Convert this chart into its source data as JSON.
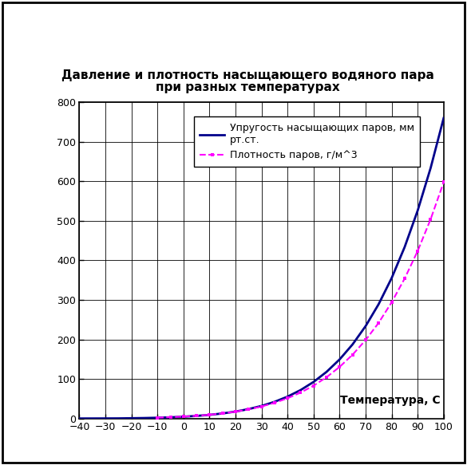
{
  "title_line1": "Давление и плотность насыщающего водяного пара",
  "title_line2": "при разных температурах",
  "xlabel": "Температура, С",
  "legend1": "Упругость насыщающих паров, мм\nрт.ст.",
  "legend2": "Плотность паров, г/м^3",
  "pressure_color": "#00008B",
  "density_color": "#FF00FF",
  "xlim": [
    -40,
    100
  ],
  "ylim": [
    0,
    800
  ],
  "xticks": [
    -40,
    -30,
    -20,
    -10,
    0,
    10,
    20,
    30,
    40,
    50,
    60,
    70,
    80,
    90,
    100
  ],
  "yticks": [
    0,
    100,
    200,
    300,
    400,
    500,
    600,
    700,
    800
  ],
  "pressure_data": {
    "temps": [
      -40,
      -35,
      -30,
      -25,
      -20,
      -15,
      -10,
      -5,
      0,
      5,
      10,
      15,
      20,
      25,
      30,
      35,
      40,
      45,
      50,
      55,
      60,
      65,
      70,
      75,
      80,
      85,
      90,
      95,
      100
    ],
    "values": [
      0.097,
      0.149,
      0.228,
      0.345,
      0.776,
      1.241,
      1.95,
      3.013,
      4.579,
      6.543,
      9.209,
      12.788,
      17.535,
      23.769,
      31.824,
      42.175,
      55.324,
      71.88,
      92.51,
      118.04,
      149.38,
      187.54,
      233.7,
      289.1,
      355.1,
      433.6,
      525.76,
      633.9,
      760.0
    ]
  },
  "density_data": {
    "temps": [
      -10,
      -5,
      0,
      5,
      10,
      15,
      20,
      25,
      30,
      35,
      40,
      45,
      50,
      55,
      60,
      65,
      70,
      75,
      80,
      85,
      90,
      95,
      100
    ],
    "values": [
      2.14,
      3.41,
      4.847,
      6.797,
      9.399,
      12.83,
      17.3,
      23.05,
      30.35,
      39.63,
      51.19,
      65.5,
      83.0,
      104.5,
      130.5,
      161.5,
      198.4,
      241.9,
      293.8,
      354.0,
      423.6,
      504.3,
      597.8
    ]
  },
  "background_color": "#ffffff",
  "title_fontsize": 11,
  "tick_fontsize": 9,
  "legend_fontsize": 9,
  "xlabel_fontsize": 10
}
